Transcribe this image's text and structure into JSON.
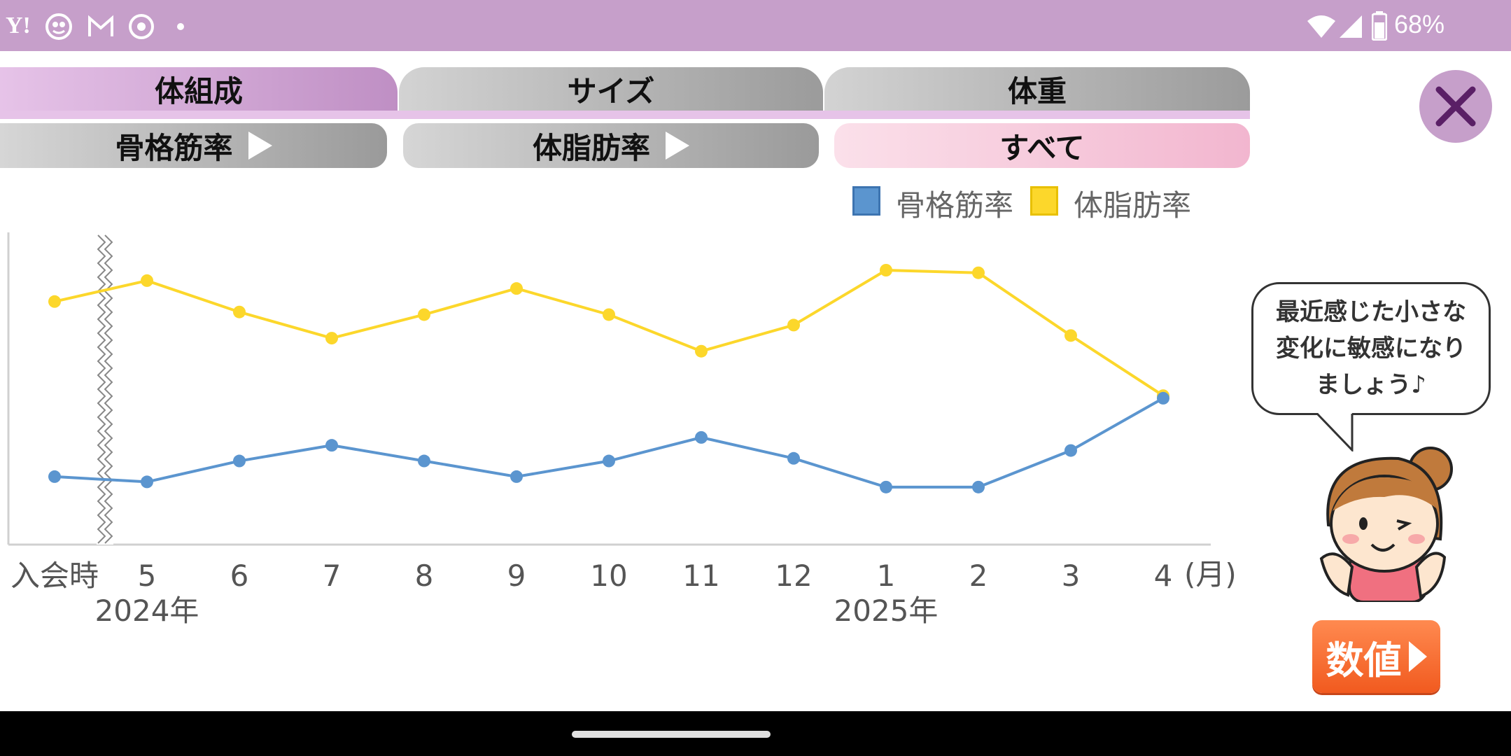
{
  "status_bar": {
    "battery_text": "68%",
    "left_icons": [
      "yahoo-icon",
      "mascot-app-icon",
      "gmail-icon",
      "chrome-icon",
      "dot-icon"
    ],
    "right_icons": [
      "wifi-icon",
      "signal-icon",
      "battery-icon"
    ],
    "yahoo_text": "Y!"
  },
  "tabs": [
    {
      "label": "体組成",
      "active": true
    },
    {
      "label": "サイズ",
      "active": false
    },
    {
      "label": "体重",
      "active": false
    }
  ],
  "subtabs": [
    {
      "label": "骨格筋率",
      "active": false
    },
    {
      "label": "体脂肪率",
      "active": false
    },
    {
      "label": "すべて",
      "active": true
    }
  ],
  "close_icon": "close-icon",
  "legend": [
    {
      "label": "骨格筋率",
      "color": "#5b95cf"
    },
    {
      "label": "体脂肪率",
      "color": "#fcd72b"
    }
  ],
  "bubble_text": "最近感じた小さな\n変化に敏感になり\nましょう♪",
  "numbers_button": "数値",
  "chart_data": {
    "type": "line",
    "categories": [
      "入会時",
      "5",
      "6",
      "7",
      "8",
      "9",
      "10",
      "11",
      "12",
      "1",
      "2",
      "3",
      "4"
    ],
    "x_unit": "(月)",
    "year_labels": [
      {
        "label": "2024年",
        "category": "5"
      },
      {
        "label": "2025年",
        "category": "1"
      }
    ],
    "series": [
      {
        "name": "骨格筋率",
        "color": "#5b95cf",
        "values": [
          0.26,
          0.24,
          0.32,
          0.38,
          0.32,
          0.26,
          0.32,
          0.41,
          0.33,
          0.22,
          0.22,
          0.36,
          0.56
        ]
      },
      {
        "name": "体脂肪率",
        "color": "#fcd72b",
        "values": [
          0.93,
          1.01,
          0.89,
          0.79,
          0.88,
          0.98,
          0.88,
          0.74,
          0.84,
          1.05,
          1.04,
          0.8,
          0.57
        ]
      }
    ],
    "ylim": [
      0,
      1.2
    ],
    "y_axis_labels_shown": false,
    "axis_break_after": "入会時",
    "grid": false
  }
}
